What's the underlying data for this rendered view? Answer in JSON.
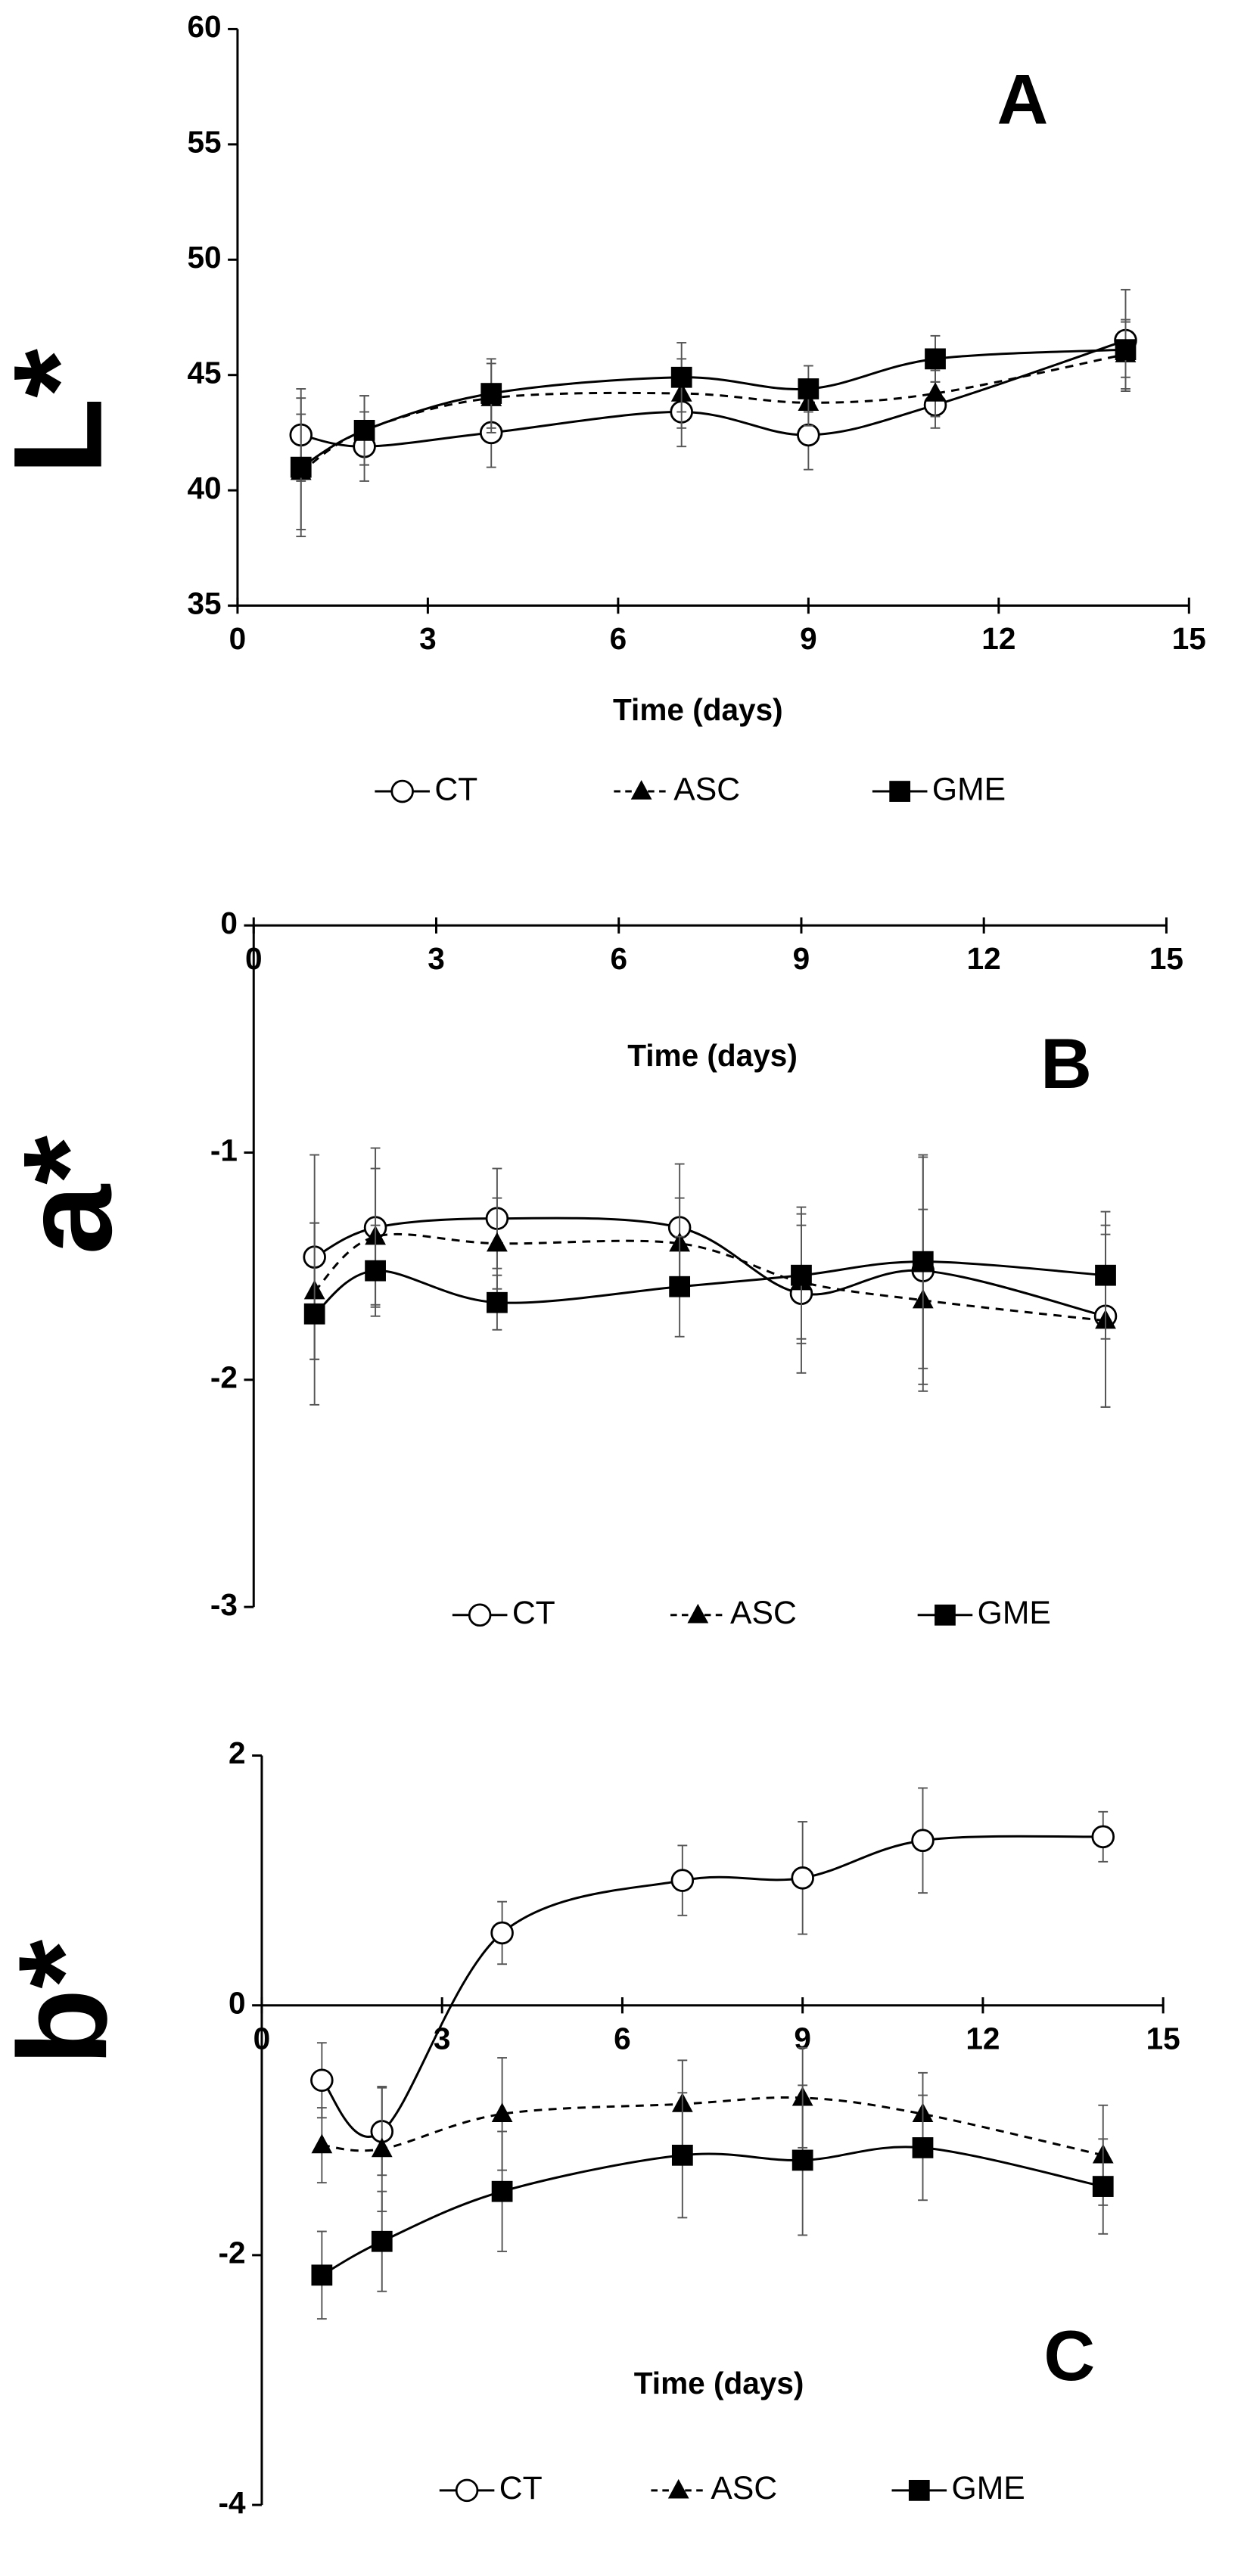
{
  "chart_data": [
    {
      "type": "line",
      "y_label": "L*",
      "x_label": "Time (days)",
      "annotation": "A",
      "x": [
        1,
        2,
        4,
        7,
        9,
        11,
        14
      ],
      "xlim": [
        0,
        15
      ],
      "xticks": [
        0,
        3,
        6,
        9,
        12,
        15
      ],
      "ylim": [
        35,
        60
      ],
      "yticks": [
        35,
        40,
        45,
        50,
        55,
        60
      ],
      "series": [
        {
          "name": "CT",
          "color": "#000000",
          "marker": "circle",
          "line_style": "solid",
          "values": [
            42.4,
            41.9,
            42.5,
            43.4,
            42.4,
            43.7,
            46.5
          ],
          "errors": [
            2,
            1.5,
            1.5,
            1.5,
            1.5,
            1,
            2.2
          ]
        },
        {
          "name": "ASC",
          "color": "#000000",
          "marker": "triangle",
          "line_style": "dashed",
          "values": [
            40.8,
            42.6,
            44.0,
            44.2,
            43.8,
            44.2,
            45.9
          ],
          "errors": [
            2.5,
            1.5,
            1.5,
            1.5,
            1,
            1,
            1.5
          ]
        },
        {
          "name": "GME",
          "color": "#000000",
          "marker": "square",
          "line_style": "solid",
          "values": [
            41.0,
            42.6,
            44.2,
            44.9,
            44.4,
            45.7,
            46.1
          ],
          "errors": [
            3,
            1.5,
            1.5,
            1.5,
            1,
            1,
            1.2
          ]
        }
      ]
    },
    {
      "type": "line",
      "y_label": "a*",
      "x_label": "Time (days)",
      "annotation": "B",
      "x": [
        1,
        2,
        4,
        7,
        9,
        11,
        14
      ],
      "xlim": [
        0,
        15
      ],
      "xticks": [
        0,
        3,
        6,
        9,
        12,
        15
      ],
      "ylim": [
        -3,
        0
      ],
      "yticks": [
        -3,
        -2,
        -1,
        0
      ],
      "series": [
        {
          "name": "CT",
          "color": "#000000",
          "marker": "circle",
          "line_style": "solid",
          "values": [
            -1.46,
            -1.33,
            -1.29,
            -1.33,
            -1.62,
            -1.52,
            -1.72
          ],
          "errors": [
            0.45,
            0.35,
            0.22,
            0.28,
            0.35,
            0.5,
            0.4
          ]
        },
        {
          "name": "ASC",
          "color": "#000000",
          "marker": "triangle",
          "line_style": "dashed",
          "values": [
            -1.61,
            -1.37,
            -1.4,
            -1.4,
            -1.57,
            -1.65,
            -1.74
          ],
          "errors": [
            0.3,
            0.3,
            0.2,
            0.2,
            0.25,
            0.4,
            0.38
          ]
        },
        {
          "name": "GME",
          "color": "#000000",
          "marker": "square",
          "line_style": "solid",
          "values": [
            -1.71,
            -1.52,
            -1.66,
            -1.59,
            -1.54,
            -1.48,
            -1.54
          ],
          "errors": [
            0.4,
            0.2,
            0.12,
            0.22,
            0.3,
            0.47,
            0.28
          ]
        }
      ]
    },
    {
      "type": "line",
      "y_label": "b*",
      "x_label": "Time (days)",
      "annotation": "C",
      "x": [
        1,
        2,
        4,
        7,
        9,
        11,
        14
      ],
      "xlim": [
        0,
        15
      ],
      "xticks": [
        0,
        3,
        6,
        9,
        12,
        15
      ],
      "ylim": [
        -4,
        2
      ],
      "yticks": [
        -4,
        -2,
        0,
        2
      ],
      "series": [
        {
          "name": "CT",
          "color": "#000000",
          "marker": "circle",
          "line_style": "solid",
          "values": [
            -0.6,
            -1.01,
            0.58,
            1.0,
            1.02,
            1.32,
            1.35
          ],
          "errors": [
            0.3,
            0.35,
            0.25,
            0.28,
            0.45,
            0.42,
            0.2
          ]
        },
        {
          "name": "ASC",
          "color": "#000000",
          "marker": "triangle",
          "line_style": "dashed",
          "values": [
            -1.12,
            -1.15,
            -0.87,
            -0.79,
            -0.74,
            -0.87,
            -1.2
          ],
          "errors": [
            0.3,
            0.5,
            0.45,
            0.35,
            0.4,
            0.33,
            0.4
          ]
        },
        {
          "name": "GME",
          "color": "#000000",
          "marker": "square",
          "line_style": "solid",
          "values": [
            -2.16,
            -1.89,
            -1.49,
            -1.2,
            -1.24,
            -1.14,
            -1.45
          ],
          "errors": [
            0.35,
            0.4,
            0.48,
            0.5,
            0.6,
            0.42,
            0.38
          ]
        }
      ]
    }
  ]
}
